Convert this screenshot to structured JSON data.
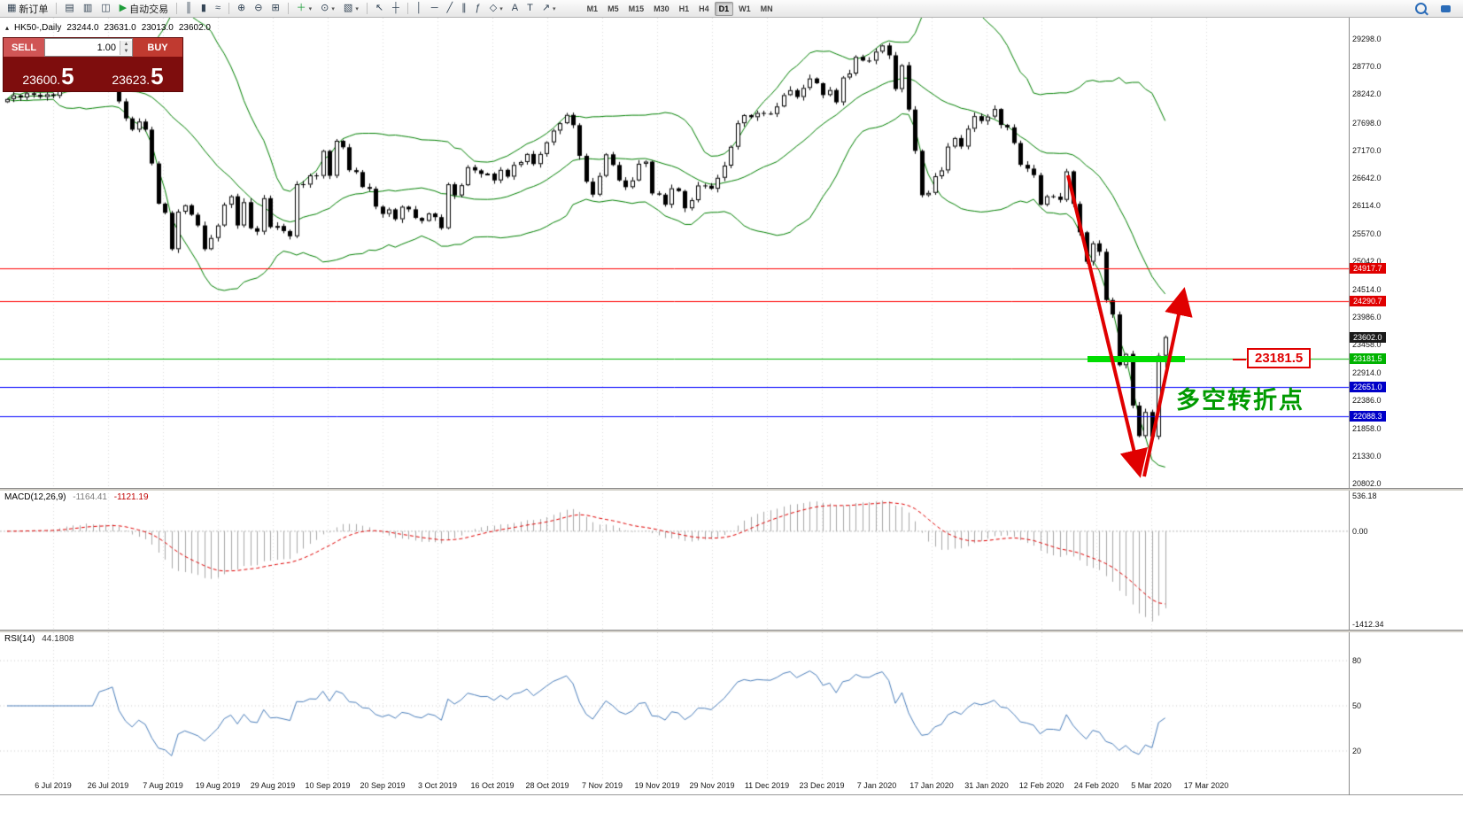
{
  "toolbar": {
    "items": [
      {
        "type": "btn",
        "name": "new-order-button",
        "glyph": "▦",
        "label": "新订单"
      },
      {
        "type": "sep"
      },
      {
        "type": "btn",
        "name": "market-watch-button",
        "glyph": "▤"
      },
      {
        "type": "btn",
        "name": "data-window-button",
        "glyph": "▥"
      },
      {
        "type": "btn",
        "name": "navigator-button",
        "glyph": "◫"
      },
      {
        "type": "btn",
        "name": "autotrade-button",
        "glyph": "▶",
        "label": "自动交易",
        "glyph_color": "#1f9d3a"
      },
      {
        "type": "sep"
      },
      {
        "type": "btn",
        "name": "bar-chart-button",
        "glyph": "║"
      },
      {
        "type": "btn",
        "name": "candlestick-chart-button",
        "glyph": "▮"
      },
      {
        "type": "btn",
        "name": "line-chart-button",
        "glyph": "≈"
      },
      {
        "type": "sep"
      },
      {
        "type": "btn",
        "name": "zoom-in-button",
        "glyph": "⊕"
      },
      {
        "type": "btn",
        "name": "zoom-out-button",
        "glyph": "⊖"
      },
      {
        "type": "btn",
        "name": "tile-windows-button",
        "glyph": "⊞"
      },
      {
        "type": "sep"
      },
      {
        "type": "btn",
        "name": "new-chart-button",
        "glyph": "＋",
        "glyph_color": "#1f9d3a",
        "caret": true
      },
      {
        "type": "btn",
        "name": "period-button",
        "glyph": "⊙",
        "caret": true
      },
      {
        "type": "btn",
        "name": "template-button",
        "glyph": "▧",
        "caret": true
      },
      {
        "type": "sep"
      },
      {
        "type": "btn",
        "name": "cursor-button",
        "glyph": "↖"
      },
      {
        "type": "btn",
        "name": "crosshair-button",
        "glyph": "┼"
      },
      {
        "type": "sep"
      },
      {
        "type": "btn",
        "name": "vertical-line-button",
        "glyph": "│"
      },
      {
        "type": "btn",
        "name": "horizontal-line-button",
        "glyph": "─"
      },
      {
        "type": "btn",
        "name": "trendline-button",
        "glyph": "╱"
      },
      {
        "type": "btn",
        "name": "channel-button",
        "glyph": "∥"
      },
      {
        "type": "btn",
        "name": "fibonacci-button",
        "glyph": "ƒ"
      },
      {
        "type": "btn",
        "name": "shapes-button",
        "glyph": "◇",
        "caret": true
      },
      {
        "type": "btn",
        "name": "text-button",
        "glyph": "A"
      },
      {
        "type": "btn",
        "name": "text-label-button",
        "glyph": "T"
      },
      {
        "type": "btn",
        "name": "arrows-button",
        "glyph": "↗",
        "caret": true
      }
    ],
    "timeframes": [
      "M1",
      "M5",
      "M15",
      "M30",
      "H1",
      "H4",
      "D1",
      "W1",
      "MN"
    ],
    "active_timeframe": "D1"
  },
  "symbol_header": {
    "symbol": "HK50-,Daily",
    "open": "23244.0",
    "high": "23631.0",
    "low": "23013.0",
    "close": "23602.0"
  },
  "order_panel": {
    "sell_label": "SELL",
    "buy_label": "BUY",
    "volume": "1.00",
    "sell_price": "23600.",
    "sell_big": "5",
    "buy_price": "23623.",
    "buy_big": "5"
  },
  "chart_data": {
    "type": "candlestick",
    "symbol": "HK50",
    "timeframe": "Daily",
    "last_ohlc": {
      "open": 23244.0,
      "high": 23631.0,
      "low": 23013.0,
      "close": 23602.0
    },
    "y_axis": {
      "labels": [
        "29298.0",
        "28770.0",
        "28242.0",
        "27698.0",
        "27170.0",
        "26642.0",
        "26114.0",
        "25570.0",
        "25042.0",
        "24514.0",
        "23986.0",
        "23458.0",
        "22914.0",
        "22386.0",
        "21858.0",
        "21330.0",
        "20802.0"
      ],
      "top_price": 29298.0,
      "bottom_price": 20802.0
    },
    "x_axis_dates": [
      "6 Jul 2019",
      "26 Jul 2019",
      "7 Aug 2019",
      "19 Aug 2019",
      "29 Aug 2019",
      "10 Sep 2019",
      "20 Sep 2019",
      "3 Oct 2019",
      "16 Oct 2019",
      "28 Oct 2019",
      "7 Nov 2019",
      "19 Nov 2019",
      "29 Nov 2019",
      "11 Dec 2019",
      "23 Dec 2019",
      "7 Jan 2020",
      "17 Jan 2020",
      "31 Jan 2020",
      "12 Feb 2020",
      "24 Feb 2020",
      "5 Mar 2020",
      "17 Mar 2020"
    ],
    "closes": [
      28150,
      28220,
      28180,
      28260,
      28230,
      28190,
      28240,
      28210,
      28550,
      28620,
      28590,
      28460,
      28765,
      28370,
      28465,
      28525,
      28595,
      28105,
      27780,
      27565,
      27720,
      27565,
      26918,
      26151,
      25976,
      25281,
      25997,
      26120,
      25939,
      25734,
      25281,
      25495,
      25734,
      26131,
      26291,
      25734,
      26179,
      25680,
      25615,
      26255,
      25703,
      25724,
      25627,
      25527,
      26523,
      26515,
      26691,
      26681,
      27159,
      26683,
      27352,
      27228,
      26790,
      26754,
      26468,
      26435,
      26094,
      25954,
      26041,
      25853,
      26092,
      26042,
      25878,
      25821,
      25962,
      25893,
      25682,
      26521,
      26308,
      26503,
      26848,
      26786,
      26719,
      26725,
      26595,
      26797,
      26667,
      26891,
      26946,
      27100,
      26907,
      27100,
      27323,
      27547,
      27688,
      27847,
      27651,
      27065,
      26571,
      26323,
      26681,
      27093,
      26889,
      26595,
      26466,
      26595,
      26913,
      26954,
      26346,
      26323,
      26130,
      26444,
      26391,
      26062,
      26217,
      26498,
      26494,
      26436,
      26645,
      26878,
      27238,
      27687,
      27843,
      27803,
      27884,
      27871,
      27864,
      28008,
      28225,
      28319,
      28189,
      28362,
      28543,
      28452,
      28226,
      28322,
      28087,
      28561,
      28638,
      28956,
      28885,
      28883,
      29056,
      29174,
      28985,
      28341,
      28795,
      27949,
      27160,
      26312,
      26357,
      26675,
      26786,
      27241,
      27404,
      27242,
      27583,
      27823,
      27730,
      27815,
      27959,
      27655,
      27609,
      27309,
      26893,
      26820,
      26696,
      26130,
      26292,
      26285,
      26223,
      26768,
      26147,
      25603,
      25040,
      25392,
      25231,
      24309,
      24033,
      23064,
      23280,
      22292,
      21709,
      22169,
      21696,
      23244,
      23602
    ],
    "bollinger": {
      "period": 20,
      "deviation": 2,
      "color": "#008000"
    },
    "levels": [
      {
        "price": 24917.7,
        "color": "#ff0000"
      },
      {
        "price": 24290.7,
        "color": "#ff0000"
      },
      {
        "price": 23181.5,
        "color": "#00b300"
      },
      {
        "price": 22651.0,
        "color": "#0000ff"
      },
      {
        "price": 22088.3,
        "color": "#0000ff"
      }
    ],
    "price_tags": [
      {
        "text": "24917.7",
        "price": 24917.7,
        "color": "#e00000"
      },
      {
        "text": "24290.7",
        "price": 24290.7,
        "color": "#e00000"
      },
      {
        "text": "23602.0",
        "price": 23602.0,
        "color": "#1b1b1b"
      },
      {
        "text": "23181.5",
        "price": 23181.5,
        "color": "#00b300"
      },
      {
        "text": "22651.0",
        "price": 22651.0,
        "color": "#0000c8"
      },
      {
        "text": "22088.3",
        "price": 22088.3,
        "color": "#0000c8"
      }
    ],
    "macd": {
      "label": "MACD(12,26,9)",
      "value1": "-1164.41",
      "value2": "-1121.19",
      "scale": [
        "536.18",
        "0.00",
        "-1412.34"
      ]
    },
    "rsi": {
      "label": "RSI(14)",
      "value": "44.1808",
      "levels": [
        80,
        50,
        20
      ]
    },
    "annotations": {
      "price_flag": "23181.5",
      "cn_note": "多空转折点",
      "support_segment_price": 23181.5
    }
  }
}
